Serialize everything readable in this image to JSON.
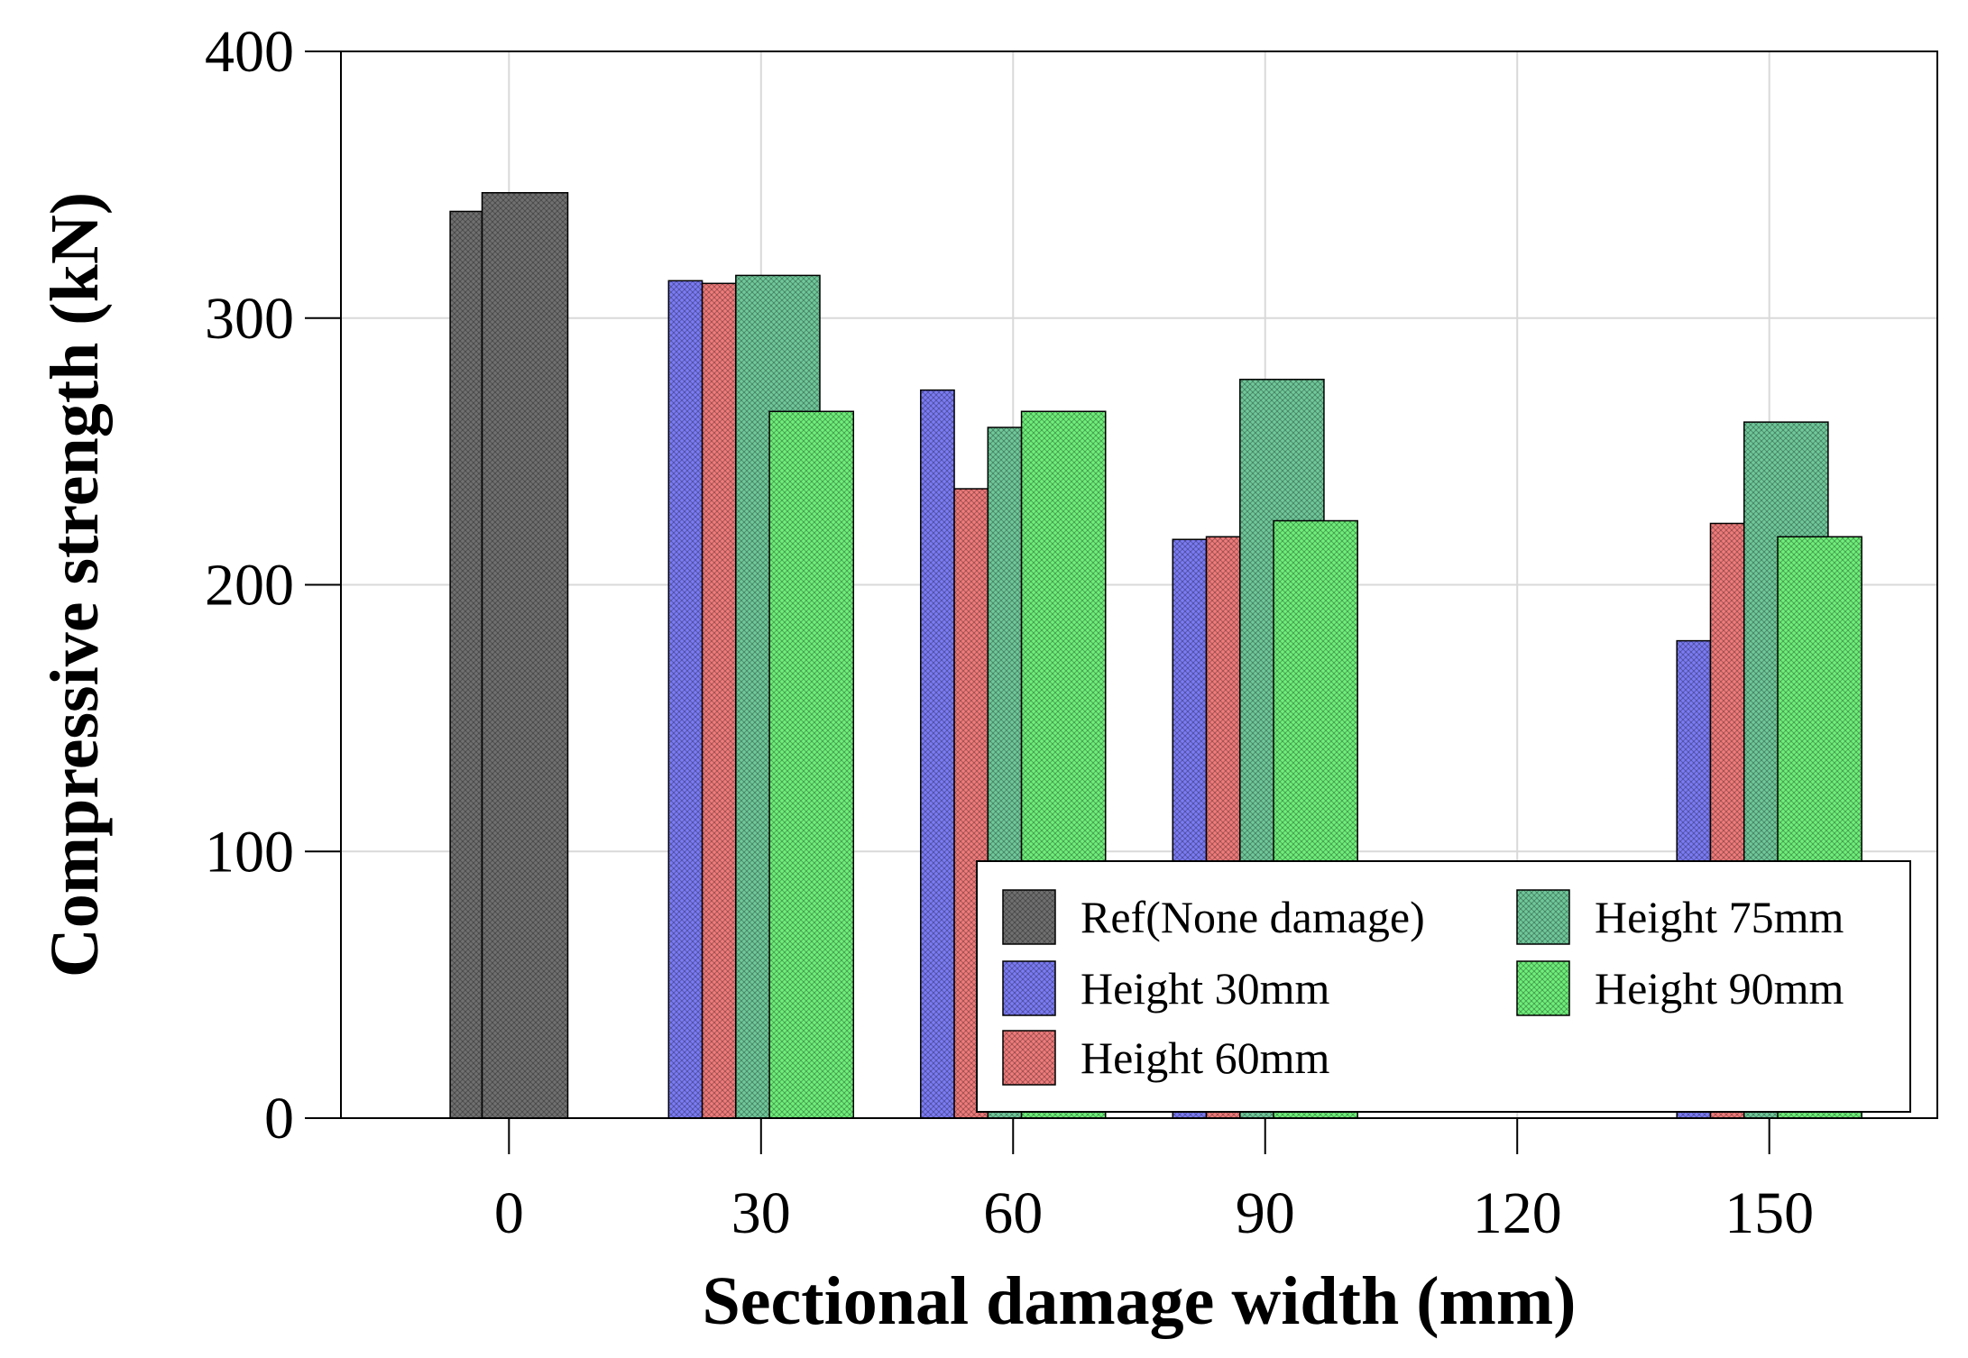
{
  "chart_data": {
    "type": "bar",
    "title": "",
    "xlabel": "Sectional damage width (mm)",
    "ylabel": "Compressive strength (kN)",
    "xlim": [
      -20,
      170
    ],
    "ylim": [
      0,
      400
    ],
    "xticks": [
      0,
      30,
      60,
      90,
      120,
      150
    ],
    "xtick_labels": [
      "0",
      "30",
      "60",
      "90",
      "120",
      "150"
    ],
    "yticks": [
      0,
      100,
      200,
      300,
      400
    ],
    "ytick_labels": [
      "0",
      "100",
      "200",
      "300",
      "400"
    ],
    "grid": true,
    "legend_position": "bottom-right",
    "series": [
      {
        "name": "Ref(None damage)",
        "color": "#707070",
        "bars": [
          {
            "x_start": -7,
            "x_end": -3.2,
            "value": 340
          },
          {
            "x_start": -3.2,
            "x_end": 7,
            "value": 347
          }
        ]
      },
      {
        "name": "Height 30mm",
        "color": "#7b7bf5",
        "bars": [
          {
            "x_start": 19,
            "x_end": 23,
            "value": 314
          },
          {
            "x_start": 49,
            "x_end": 53,
            "value": 273
          },
          {
            "x_start": 79,
            "x_end": 83,
            "value": 217
          },
          {
            "x_start": 139,
            "x_end": 143,
            "value": 179
          }
        ]
      },
      {
        "name": "Height 60mm",
        "color": "#f07b7b",
        "bars": [
          {
            "x_start": 23,
            "x_end": 27,
            "value": 313
          },
          {
            "x_start": 53,
            "x_end": 57,
            "value": 236
          },
          {
            "x_start": 83,
            "x_end": 87,
            "value": 218
          },
          {
            "x_start": 143,
            "x_end": 147,
            "value": 223
          }
        ]
      },
      {
        "name": "Height 75mm",
        "color": "#6fc99a",
        "bars": [
          {
            "x_start": 27,
            "x_end": 37,
            "value": 316
          },
          {
            "x_start": 57,
            "x_end": 61,
            "value": 259
          },
          {
            "x_start": 87,
            "x_end": 97,
            "value": 277
          },
          {
            "x_start": 147,
            "x_end": 157,
            "value": 261
          }
        ]
      },
      {
        "name": "Height 90mm",
        "color": "#6ef07a",
        "bars": [
          {
            "x_start": 31,
            "x_end": 41,
            "value": 265
          },
          {
            "x_start": 61,
            "x_end": 71,
            "value": 265
          },
          {
            "x_start": 91,
            "x_end": 101,
            "value": 224
          },
          {
            "x_start": 151,
            "x_end": 161,
            "value": 218
          }
        ]
      }
    ]
  }
}
